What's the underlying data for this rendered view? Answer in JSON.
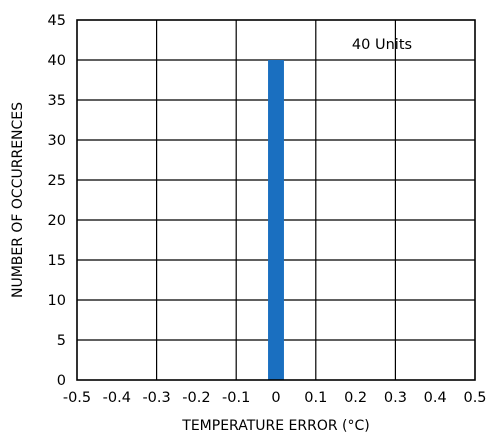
{
  "chart_data": {
    "type": "bar",
    "x": [
      0.0
    ],
    "values": [
      40
    ],
    "bar_width": 0.04,
    "xlabel": "TEMPERATURE ERROR (°C)",
    "ylabel": "NUMBER OF OCCURRENCES",
    "xlim": [
      -0.5,
      0.5
    ],
    "ylim": [
      0,
      45
    ],
    "xticks": [
      "-0.5",
      "-0.4",
      "-0.3",
      "-0.2",
      "-0.1",
      "0",
      "0.1",
      "0.2",
      "0.3",
      "0.4",
      "0.5"
    ],
    "yticks": [
      "0",
      "5",
      "10",
      "15",
      "20",
      "25",
      "30",
      "35",
      "40",
      "45"
    ],
    "grid": true,
    "bar_color": "#1a6fc0",
    "annotation": "40 Units"
  }
}
